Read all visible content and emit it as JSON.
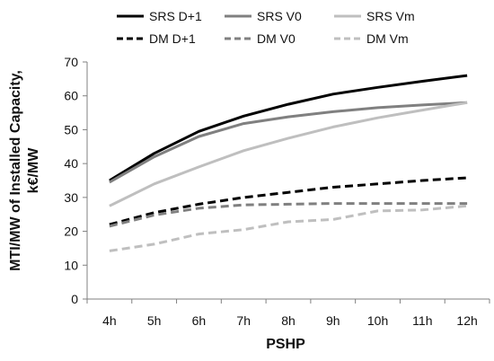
{
  "chart_data": {
    "type": "line",
    "xlabel": "PSHP",
    "ylabel_line1": "MTI/MW  of Installed Capacity,",
    "ylabel_line2": "k€/MW",
    "categories": [
      "4h",
      "5h",
      "6h",
      "7h",
      "8h",
      "9h",
      "10h",
      "11h",
      "12h"
    ],
    "ylim": [
      0,
      70
    ],
    "yticks": [
      0,
      10,
      20,
      30,
      40,
      50,
      60,
      70
    ],
    "grid": false,
    "legend_position": "top",
    "series": [
      {
        "name": "SRS D+1",
        "color": "#000000",
        "dash": "solid",
        "values": [
          35,
          43,
          49.5,
          54,
          57.5,
          60.5,
          62.5,
          64.3,
          66
        ]
      },
      {
        "name": "SRS V0",
        "color": "#808080",
        "dash": "solid",
        "values": [
          34.5,
          42,
          48,
          51.8,
          53.8,
          55.3,
          56.5,
          57.3,
          58
        ]
      },
      {
        "name": "SRS Vm",
        "color": "#bfbfbf",
        "dash": "solid",
        "values": [
          27.5,
          34,
          39,
          43.8,
          47.5,
          50.8,
          53.5,
          55.8,
          58
        ]
      },
      {
        "name": "DM D+1",
        "color": "#000000",
        "dash": "dashed",
        "values": [
          22,
          25.5,
          28,
          30,
          31.5,
          33,
          34,
          35,
          35.8
        ]
      },
      {
        "name": "DM V0",
        "color": "#808080",
        "dash": "dashed",
        "values": [
          21.5,
          24.8,
          26.8,
          27.8,
          28,
          28.2,
          28.2,
          28.2,
          28.2
        ]
      },
      {
        "name": "DM Vm",
        "color": "#bfbfbf",
        "dash": "dashed",
        "values": [
          14.2,
          16.2,
          19.2,
          20.5,
          22.8,
          23.5,
          26,
          26.3,
          27.5
        ]
      }
    ]
  }
}
